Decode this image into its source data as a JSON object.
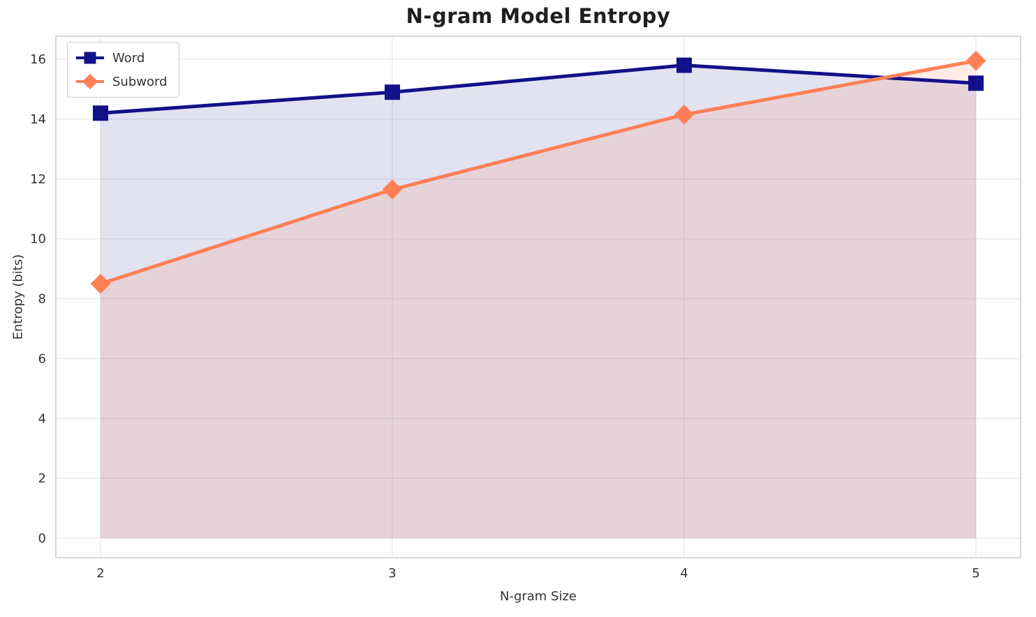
{
  "chart_data": {
    "type": "line",
    "title": "N-gram Model Entropy",
    "xlabel": "N-gram Size",
    "ylabel": "Entropy (bits)",
    "categories": [
      "2",
      "3",
      "4",
      "5"
    ],
    "series": [
      {
        "name": "Word",
        "values": [
          14.2,
          14.9,
          15.8,
          15.2
        ],
        "color": "#11118a",
        "marker": "square",
        "fill_opacity": 0.12
      },
      {
        "name": "Subword",
        "values": [
          8.5,
          11.65,
          14.15,
          15.95
        ],
        "color": "#ff7f55",
        "marker": "diamond",
        "fill_opacity": 0.15
      }
    ],
    "ylim": [
      0,
      16
    ],
    "yticks": [
      0,
      2,
      4,
      6,
      8,
      10,
      12,
      14,
      16
    ],
    "grid": true,
    "legend_position": "upper left",
    "area_fill": true,
    "grid_color": "#e6e6e6",
    "spine_color": "#cccccc"
  }
}
